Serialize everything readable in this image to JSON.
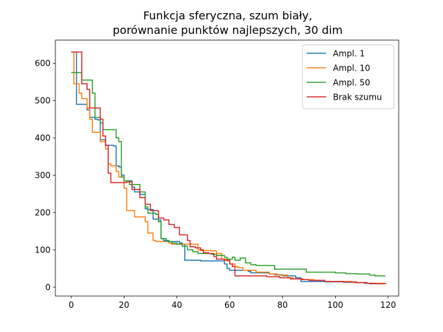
{
  "chart_data": {
    "type": "line",
    "title": [
      "Funkcja sferyczna, szum biały,",
      "porównanie punktów najlepszych, 30 dim"
    ],
    "xlabel": "",
    "ylabel": "",
    "xlim": [
      -6,
      124
    ],
    "ylim": [
      -24,
      662
    ],
    "xticks": [
      0,
      20,
      40,
      60,
      80,
      100,
      120
    ],
    "yticks": [
      0,
      100,
      200,
      300,
      400,
      500,
      600
    ],
    "grid": false,
    "legend_position": "upper right",
    "step": "post",
    "series": [
      {
        "name": "Ampl. 1",
        "color": "#1f77b4",
        "points": [
          [
            0,
            630
          ],
          [
            1,
            630
          ],
          [
            2,
            490
          ],
          [
            5,
            490
          ],
          [
            6,
            475
          ],
          [
            7,
            455
          ],
          [
            9,
            450
          ],
          [
            10,
            448
          ],
          [
            11,
            395
          ],
          [
            13,
            380
          ],
          [
            16,
            378
          ],
          [
            17,
            325
          ],
          [
            18,
            322
          ],
          [
            19,
            300
          ],
          [
            20,
            285
          ],
          [
            23,
            268
          ],
          [
            24,
            255
          ],
          [
            26,
            248
          ],
          [
            28,
            210
          ],
          [
            29,
            208
          ],
          [
            31,
            182
          ],
          [
            33,
            180
          ],
          [
            34,
            130
          ],
          [
            35,
            125
          ],
          [
            37,
            122
          ],
          [
            41,
            118
          ],
          [
            42,
            115
          ],
          [
            43,
            72
          ],
          [
            48,
            72
          ],
          [
            49,
            70
          ],
          [
            57,
            70
          ],
          [
            58,
            62
          ],
          [
            59,
            50
          ],
          [
            60,
            45
          ],
          [
            67,
            42
          ],
          [
            68,
            38
          ],
          [
            75,
            35
          ],
          [
            77,
            33
          ],
          [
            80,
            30
          ],
          [
            85,
            25
          ],
          [
            87,
            15
          ],
          [
            95,
            15
          ],
          [
            96,
            14
          ],
          [
            103,
            13
          ],
          [
            107,
            12
          ],
          [
            111,
            10
          ],
          [
            113,
            9
          ],
          [
            119,
            9
          ]
        ]
      },
      {
        "name": "Ampl. 10",
        "color": "#ff7f0e",
        "points": [
          [
            0,
            630
          ],
          [
            1,
            545
          ],
          [
            2,
            545
          ],
          [
            3,
            520
          ],
          [
            4,
            505
          ],
          [
            6,
            480
          ],
          [
            7,
            450
          ],
          [
            8,
            415
          ],
          [
            11,
            390
          ],
          [
            13,
            370
          ],
          [
            14,
            330
          ],
          [
            15,
            325
          ],
          [
            17,
            310
          ],
          [
            18,
            295
          ],
          [
            20,
            265
          ],
          [
            21,
            205
          ],
          [
            24,
            188
          ],
          [
            28,
            175
          ],
          [
            29,
            145
          ],
          [
            31,
            125
          ],
          [
            32,
            122
          ],
          [
            37,
            118
          ],
          [
            38,
            115
          ],
          [
            48,
            100
          ],
          [
            49,
            98
          ],
          [
            53,
            97
          ],
          [
            55,
            90
          ],
          [
            57,
            75
          ],
          [
            59,
            70
          ],
          [
            60,
            62
          ],
          [
            62,
            55
          ],
          [
            63,
            52
          ],
          [
            65,
            45
          ],
          [
            70,
            40
          ],
          [
            75,
            35
          ],
          [
            78,
            32
          ],
          [
            82,
            25
          ],
          [
            84,
            22
          ],
          [
            88,
            20
          ],
          [
            92,
            18
          ],
          [
            96,
            15
          ],
          [
            106,
            13
          ],
          [
            107,
            12
          ],
          [
            112,
            10
          ],
          [
            119,
            10
          ]
        ]
      },
      {
        "name": "Ampl. 50",
        "color": "#2ca02c",
        "points": [
          [
            0,
            575
          ],
          [
            3,
            575
          ],
          [
            4,
            555
          ],
          [
            7,
            555
          ],
          [
            8,
            520
          ],
          [
            9,
            455
          ],
          [
            11,
            440
          ],
          [
            12,
            422
          ],
          [
            17,
            400
          ],
          [
            18,
            390
          ],
          [
            19,
            295
          ],
          [
            20,
            285
          ],
          [
            22,
            275
          ],
          [
            26,
            255
          ],
          [
            28,
            215
          ],
          [
            29,
            198
          ],
          [
            32,
            195
          ],
          [
            33,
            175
          ],
          [
            34,
            130
          ],
          [
            36,
            122
          ],
          [
            38,
            118
          ],
          [
            40,
            115
          ],
          [
            42,
            110
          ],
          [
            44,
            100
          ],
          [
            46,
            95
          ],
          [
            48,
            90
          ],
          [
            53,
            88
          ],
          [
            55,
            85
          ],
          [
            58,
            80
          ],
          [
            59,
            75
          ],
          [
            61,
            80
          ],
          [
            62,
            72
          ],
          [
            64,
            78
          ],
          [
            66,
            65
          ],
          [
            68,
            60
          ],
          [
            70,
            58
          ],
          [
            77,
            48
          ],
          [
            87,
            48
          ],
          [
            89,
            40
          ],
          [
            98,
            40
          ],
          [
            100,
            38
          ],
          [
            104,
            36
          ],
          [
            108,
            35
          ],
          [
            113,
            32
          ],
          [
            115,
            30
          ],
          [
            119,
            30
          ]
        ]
      },
      {
        "name": "Brak szumu",
        "color": "#d62728",
        "points": [
          [
            0,
            630
          ],
          [
            3,
            630
          ],
          [
            4,
            545
          ],
          [
            6,
            530
          ],
          [
            7,
            480
          ],
          [
            10,
            480
          ],
          [
            11,
            450
          ],
          [
            12,
            405
          ],
          [
            13,
            380
          ],
          [
            14,
            305
          ],
          [
            15,
            280
          ],
          [
            20,
            280
          ],
          [
            21,
            282
          ],
          [
            23,
            262
          ],
          [
            26,
            240
          ],
          [
            28,
            222
          ],
          [
            30,
            205
          ],
          [
            33,
            185
          ],
          [
            35,
            180
          ],
          [
            37,
            168
          ],
          [
            39,
            160
          ],
          [
            41,
            140
          ],
          [
            44,
            125
          ],
          [
            45,
            108
          ],
          [
            47,
            105
          ],
          [
            49,
            100
          ],
          [
            50,
            92
          ],
          [
            52,
            90
          ],
          [
            54,
            82
          ],
          [
            55,
            75
          ],
          [
            58,
            72
          ],
          [
            60,
            62
          ],
          [
            61,
            55
          ],
          [
            62,
            30
          ],
          [
            70,
            30
          ],
          [
            74,
            28
          ],
          [
            79,
            25
          ],
          [
            83,
            22
          ],
          [
            87,
            20
          ],
          [
            90,
            18
          ],
          [
            96,
            15
          ],
          [
            103,
            14
          ],
          [
            108,
            12
          ],
          [
            112,
            10
          ],
          [
            115,
            9
          ],
          [
            119,
            8
          ]
        ]
      }
    ]
  }
}
